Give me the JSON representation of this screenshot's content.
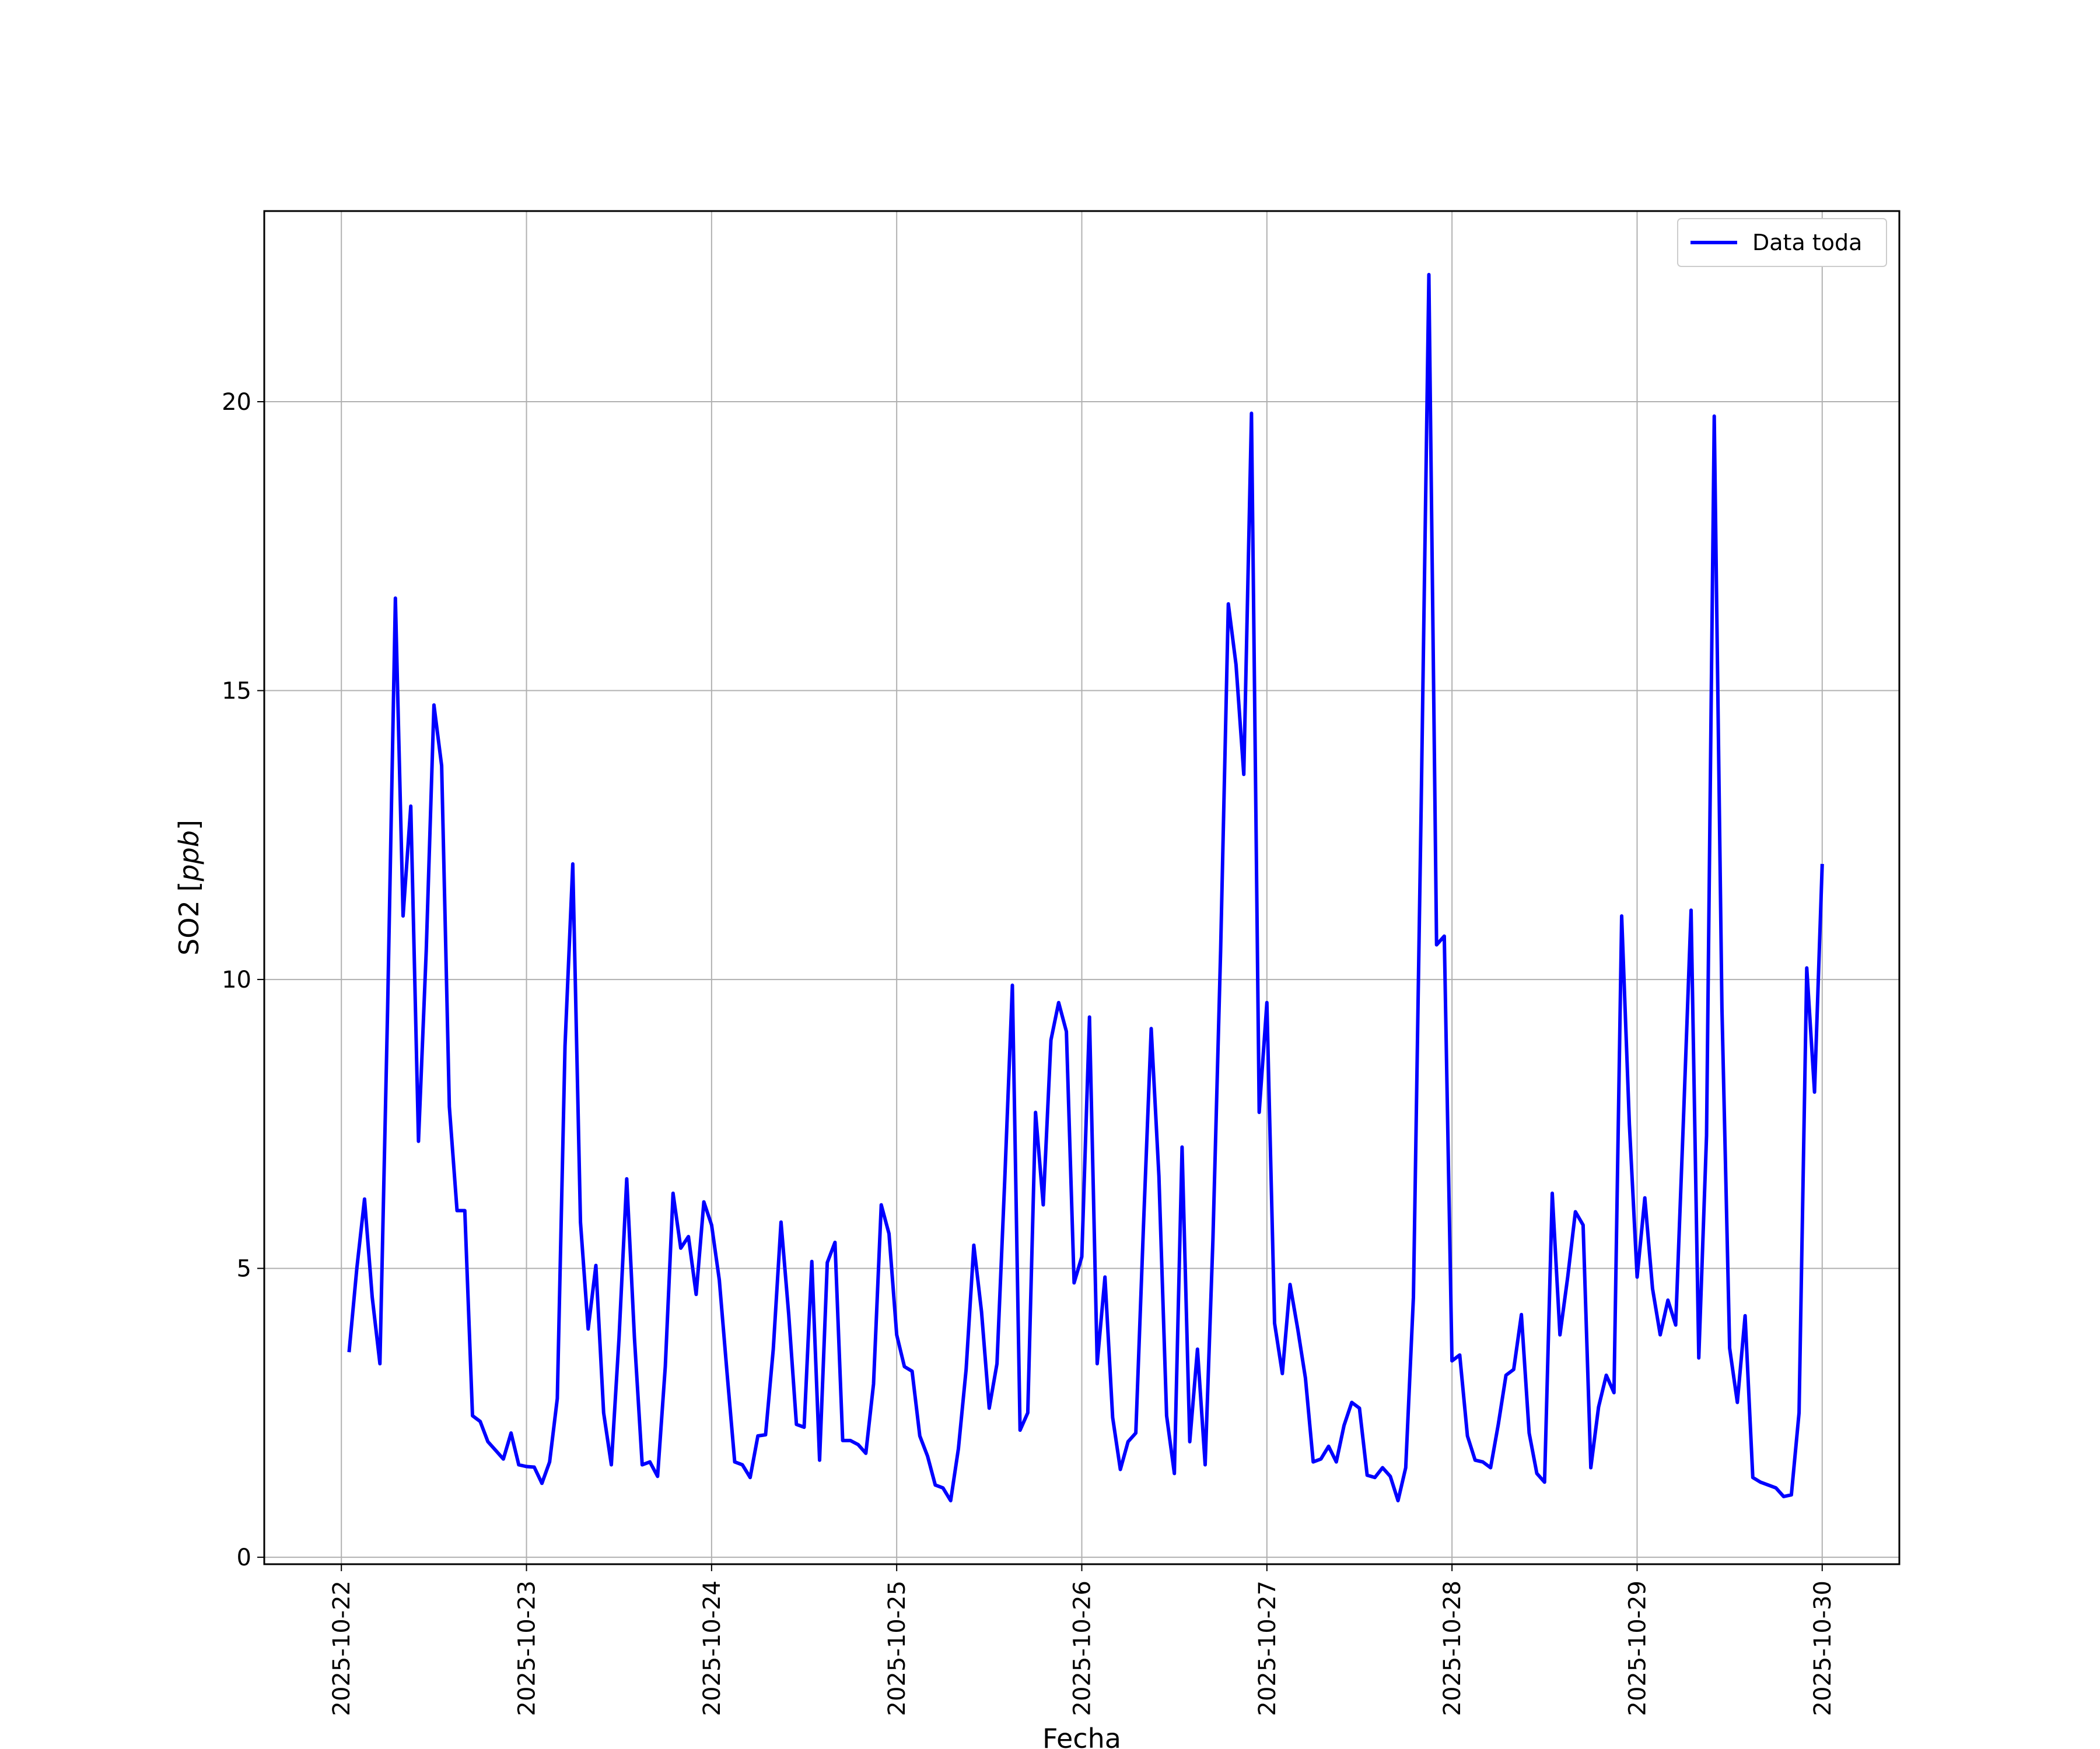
{
  "chart_data": {
    "type": "line",
    "title": "",
    "xlabel": "Fecha",
    "ylabel_main": "SO2 [",
    "ylabel_unit": "ppb",
    "ylabel_close": "]",
    "x_tick_labels": [
      "2025-10-22",
      "2025-10-23",
      "2025-10-24",
      "2025-10-25",
      "2025-10-26",
      "2025-10-27",
      "2025-10-28",
      "2025-10-29",
      "2025-10-30"
    ],
    "y_tick_labels": [
      "0",
      "5",
      "10",
      "15",
      "20"
    ],
    "y_ticks": [
      0,
      5,
      10,
      15,
      20
    ],
    "ylim": [
      -0.12,
      23.3
    ],
    "xlim": [
      "2025-10-21 14:00",
      "2025-10-30 10:00"
    ],
    "grid": true,
    "legend_position": "top-right",
    "series": [
      {
        "name": "Data toda",
        "color": "#0000ff",
        "x": [
          "2025-10-22 01:00",
          "2025-10-22 02:00",
          "2025-10-22 03:00",
          "2025-10-22 04:00",
          "2025-10-22 05:00",
          "2025-10-22 06:00",
          "2025-10-22 07:00",
          "2025-10-22 08:00",
          "2025-10-22 09:00",
          "2025-10-22 10:00",
          "2025-10-22 11:00",
          "2025-10-22 12:00",
          "2025-10-22 13:00",
          "2025-10-22 14:00",
          "2025-10-22 15:00",
          "2025-10-22 16:00",
          "2025-10-22 17:00",
          "2025-10-22 18:00",
          "2025-10-22 19:00",
          "2025-10-22 20:00",
          "2025-10-22 21:00",
          "2025-10-22 22:00",
          "2025-10-22 23:00",
          "2025-10-23 00:00",
          "2025-10-23 01:00",
          "2025-10-23 02:00",
          "2025-10-23 03:00",
          "2025-10-23 04:00",
          "2025-10-23 05:00",
          "2025-10-23 06:00",
          "2025-10-23 07:00",
          "2025-10-23 08:00",
          "2025-10-23 09:00",
          "2025-10-23 10:00",
          "2025-10-23 11:00",
          "2025-10-23 12:00",
          "2025-10-23 13:00",
          "2025-10-23 14:00",
          "2025-10-23 15:00",
          "2025-10-23 16:00",
          "2025-10-23 17:00",
          "2025-10-23 18:00",
          "2025-10-23 19:00",
          "2025-10-23 20:00",
          "2025-10-23 21:00",
          "2025-10-23 22:00",
          "2025-10-23 23:00",
          "2025-10-24 00:00",
          "2025-10-24 01:00",
          "2025-10-24 02:00",
          "2025-10-24 03:00",
          "2025-10-24 04:00",
          "2025-10-24 05:00",
          "2025-10-24 06:00",
          "2025-10-24 07:00",
          "2025-10-24 08:00",
          "2025-10-24 09:00",
          "2025-10-24 10:00",
          "2025-10-24 11:00",
          "2025-10-24 12:00",
          "2025-10-24 13:00",
          "2025-10-24 14:00",
          "2025-10-24 15:00",
          "2025-10-24 16:00",
          "2025-10-24 17:00",
          "2025-10-24 18:00",
          "2025-10-24 19:00",
          "2025-10-24 20:00",
          "2025-10-24 21:00",
          "2025-10-24 22:00",
          "2025-10-24 23:00",
          "2025-10-25 00:00",
          "2025-10-25 01:00",
          "2025-10-25 02:00",
          "2025-10-25 03:00",
          "2025-10-25 04:00",
          "2025-10-25 05:00",
          "2025-10-25 06:00",
          "2025-10-25 07:00",
          "2025-10-25 08:00",
          "2025-10-25 09:00",
          "2025-10-25 10:00",
          "2025-10-25 11:00",
          "2025-10-25 12:00",
          "2025-10-25 13:00",
          "2025-10-25 14:00",
          "2025-10-25 15:00",
          "2025-10-25 16:00",
          "2025-10-25 17:00",
          "2025-10-25 18:00",
          "2025-10-25 19:00",
          "2025-10-25 20:00",
          "2025-10-25 21:00",
          "2025-10-25 22:00",
          "2025-10-25 23:00",
          "2025-10-26 00:00",
          "2025-10-26 01:00",
          "2025-10-26 02:00",
          "2025-10-26 03:00",
          "2025-10-26 04:00",
          "2025-10-26 05:00",
          "2025-10-26 06:00",
          "2025-10-26 07:00",
          "2025-10-26 08:00",
          "2025-10-26 09:00",
          "2025-10-26 10:00",
          "2025-10-26 11:00",
          "2025-10-26 12:00",
          "2025-10-26 13:00",
          "2025-10-26 14:00",
          "2025-10-26 15:00",
          "2025-10-26 16:00",
          "2025-10-26 17:00",
          "2025-10-26 18:00",
          "2025-10-26 19:00",
          "2025-10-26 20:00",
          "2025-10-26 21:00",
          "2025-10-26 22:00",
          "2025-10-26 23:00",
          "2025-10-27 00:00",
          "2025-10-27 01:00",
          "2025-10-27 02:00",
          "2025-10-27 03:00",
          "2025-10-27 04:00",
          "2025-10-27 05:00",
          "2025-10-27 06:00",
          "2025-10-27 07:00",
          "2025-10-27 08:00",
          "2025-10-27 09:00",
          "2025-10-27 10:00",
          "2025-10-27 11:00",
          "2025-10-27 12:00",
          "2025-10-27 13:00",
          "2025-10-27 14:00",
          "2025-10-27 15:00",
          "2025-10-27 16:00",
          "2025-10-27 17:00",
          "2025-10-27 18:00",
          "2025-10-27 19:00",
          "2025-10-27 20:00",
          "2025-10-27 21:00",
          "2025-10-27 22:00",
          "2025-10-27 23:00",
          "2025-10-28 00:00",
          "2025-10-28 01:00",
          "2025-10-28 02:00",
          "2025-10-28 03:00",
          "2025-10-28 04:00",
          "2025-10-28 05:00",
          "2025-10-28 06:00",
          "2025-10-28 07:00",
          "2025-10-28 08:00",
          "2025-10-28 09:00",
          "2025-10-28 10:00",
          "2025-10-28 11:00",
          "2025-10-28 12:00",
          "2025-10-28 13:00",
          "2025-10-28 14:00",
          "2025-10-28 15:00",
          "2025-10-28 16:00",
          "2025-10-28 17:00",
          "2025-10-28 18:00",
          "2025-10-28 19:00",
          "2025-10-28 20:00",
          "2025-10-28 21:00",
          "2025-10-28 22:00",
          "2025-10-28 23:00",
          "2025-10-29 00:00",
          "2025-10-29 01:00",
          "2025-10-29 02:00",
          "2025-10-29 03:00",
          "2025-10-29 04:00",
          "2025-10-29 05:00",
          "2025-10-29 06:00",
          "2025-10-29 07:00",
          "2025-10-29 08:00",
          "2025-10-29 09:00",
          "2025-10-29 10:00",
          "2025-10-29 11:00",
          "2025-10-29 12:00",
          "2025-10-29 13:00",
          "2025-10-29 14:00",
          "2025-10-29 15:00",
          "2025-10-29 16:00",
          "2025-10-29 17:00",
          "2025-10-29 18:00",
          "2025-10-29 19:00",
          "2025-10-29 20:00",
          "2025-10-29 21:00",
          "2025-10-29 22:00",
          "2025-10-29 23:00",
          "2025-10-30 00:00"
        ],
        "y": [
          3.55,
          5.0,
          6.2,
          4.5,
          3.35,
          9.5,
          16.6,
          11.1,
          13.0,
          7.2,
          10.5,
          14.75,
          13.7,
          7.8,
          6.0,
          6.0,
          2.45,
          2.35,
          2.0,
          1.85,
          1.7,
          2.15,
          1.6,
          1.57,
          1.56,
          1.28,
          1.65,
          2.75,
          8.85,
          12.0,
          5.8,
          3.95,
          5.05,
          2.5,
          1.6,
          3.8,
          6.55,
          3.8,
          1.6,
          1.65,
          1.4,
          3.3,
          6.3,
          5.35,
          5.55,
          4.55,
          6.15,
          5.75,
          4.8,
          3.2,
          1.65,
          1.6,
          1.38,
          2.1,
          2.12,
          3.6,
          5.8,
          4.2,
          2.3,
          2.25,
          5.12,
          1.68,
          5.1,
          5.45,
          2.02,
          2.02,
          1.95,
          1.8,
          3.0,
          6.1,
          5.6,
          3.85,
          3.3,
          3.22,
          2.1,
          1.75,
          1.25,
          1.2,
          0.98,
          1.88,
          3.25,
          5.4,
          4.25,
          2.58,
          3.35,
          6.5,
          9.9,
          2.2,
          2.5,
          7.7,
          6.1,
          8.95,
          9.6,
          9.1,
          4.75,
          5.2,
          9.35,
          3.35,
          4.85,
          2.42,
          1.52,
          2.0,
          2.15,
          5.75,
          9.15,
          6.6,
          2.45,
          1.45,
          7.1,
          2.0,
          3.6,
          1.6,
          5.5,
          10.5,
          16.5,
          15.45,
          13.55,
          19.8,
          7.7,
          9.6,
          4.05,
          3.18,
          4.72,
          3.95,
          3.1,
          1.65,
          1.7,
          1.92,
          1.65,
          2.28,
          2.68,
          2.58,
          1.42,
          1.38,
          1.55,
          1.4,
          0.98,
          1.55,
          4.5,
          13.0,
          22.2,
          10.6,
          10.75,
          3.4,
          3.5,
          2.1,
          1.68,
          1.65,
          1.55,
          2.3,
          3.15,
          3.25,
          4.2,
          2.15,
          1.45,
          1.3,
          6.3,
          3.85,
          4.85,
          5.98,
          5.75,
          1.55,
          2.6,
          3.15,
          2.85,
          11.1,
          7.5,
          4.85,
          6.22,
          4.65,
          3.85,
          4.45,
          4.02,
          7.55,
          11.2,
          3.45,
          7.3,
          19.75,
          9.5,
          3.62,
          2.68,
          4.18,
          1.38,
          1.3,
          1.25,
          1.2,
          1.05,
          1.08,
          2.5,
          10.2,
          8.05,
          12.0
        ]
      }
    ]
  }
}
